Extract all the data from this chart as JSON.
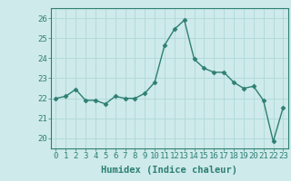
{
  "x": [
    0,
    1,
    2,
    3,
    4,
    5,
    6,
    7,
    8,
    9,
    10,
    11,
    12,
    13,
    14,
    15,
    16,
    17,
    18,
    19,
    20,
    21,
    22,
    23
  ],
  "y": [
    22.0,
    22.1,
    22.45,
    21.9,
    21.9,
    21.72,
    22.1,
    22.0,
    22.0,
    22.25,
    22.8,
    24.65,
    25.45,
    25.9,
    23.95,
    23.5,
    23.3,
    23.3,
    22.8,
    22.5,
    22.6,
    21.9,
    19.85,
    21.55
  ],
  "line_color": "#2d7f72",
  "marker": "D",
  "marker_size": 2.5,
  "bg_color": "#ceeaea",
  "grid_color": "#b0d8d8",
  "xlabel": "Humidex (Indice chaleur)",
  "xlim": [
    -0.5,
    23.5
  ],
  "ylim": [
    19.5,
    26.5
  ],
  "yticks": [
    20,
    21,
    22,
    23,
    24,
    25,
    26
  ],
  "xticks": [
    0,
    1,
    2,
    3,
    4,
    5,
    6,
    7,
    8,
    9,
    10,
    11,
    12,
    13,
    14,
    15,
    16,
    17,
    18,
    19,
    20,
    21,
    22,
    23
  ],
  "xlabel_fontsize": 7.5,
  "tick_fontsize": 6.5,
  "line_width": 1.0
}
